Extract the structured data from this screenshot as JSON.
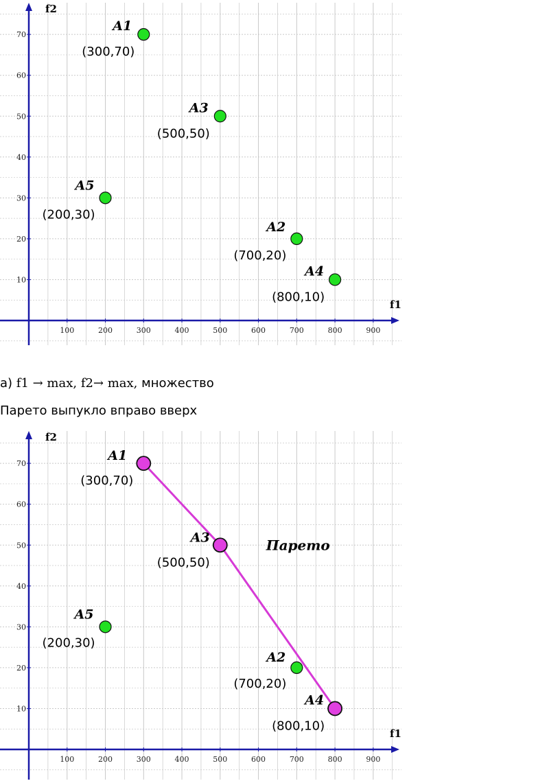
{
  "chart_data": [
    {
      "type": "scatter",
      "xlabel": "f1",
      "ylabel": "f2",
      "xlim": [
        0,
        1000
      ],
      "ylim": [
        -5,
        80
      ],
      "x_ticks": [
        100,
        200,
        300,
        400,
        500,
        600,
        700,
        800,
        900
      ],
      "y_ticks": [
        10,
        20,
        30,
        40,
        50,
        60,
        70
      ],
      "grid": true,
      "points": [
        {
          "name": "A1",
          "x": 300,
          "y": 70,
          "label": "(300,70)",
          "color": "#22e022"
        },
        {
          "name": "A3",
          "x": 500,
          "y": 50,
          "label": "(500,50)",
          "color": "#22e022"
        },
        {
          "name": "A5",
          "x": 200,
          "y": 30,
          "label": "(200,30)",
          "color": "#22e022"
        },
        {
          "name": "A2",
          "x": 700,
          "y": 20,
          "label": "(700,20)",
          "color": "#22e022"
        },
        {
          "name": "A4",
          "x": 800,
          "y": 10,
          "label": "(800,10)",
          "color": "#22e022"
        }
      ]
    },
    {
      "type": "scatter",
      "xlabel": "f1",
      "ylabel": "f2",
      "xlim": [
        0,
        1000
      ],
      "ylim": [
        -5,
        80
      ],
      "x_ticks": [
        100,
        200,
        300,
        400,
        500,
        600,
        700,
        800,
        900
      ],
      "y_ticks": [
        10,
        20,
        30,
        40,
        50,
        60,
        70
      ],
      "grid": true,
      "annotation": "Парето",
      "pareto_line": [
        "A1",
        "A3",
        "A4"
      ],
      "line_color": "#d63ad6",
      "points": [
        {
          "name": "A1",
          "x": 300,
          "y": 70,
          "label": "(300,70)",
          "color": "#e040e0"
        },
        {
          "name": "A3",
          "x": 500,
          "y": 50,
          "label": "(500,50)",
          "color": "#e040e0"
        },
        {
          "name": "A5",
          "x": 200,
          "y": 30,
          "label": "(200,30)",
          "color": "#22e022"
        },
        {
          "name": "A2",
          "x": 700,
          "y": 20,
          "label": "(700,20)",
          "color": "#22e022"
        },
        {
          "name": "A4",
          "x": 800,
          "y": 10,
          "label": "(800,10)",
          "color": "#e040e0"
        }
      ]
    }
  ],
  "captions": {
    "line1_prefix": "а) ",
    "line1_math": "f1 → max, f2→ max, ",
    "line1_suffix": "множество",
    "line2": "Парето выпукло вправо вверх"
  },
  "colors": {
    "axis": "#1a1aa8",
    "grid": "#c8c8c8"
  }
}
